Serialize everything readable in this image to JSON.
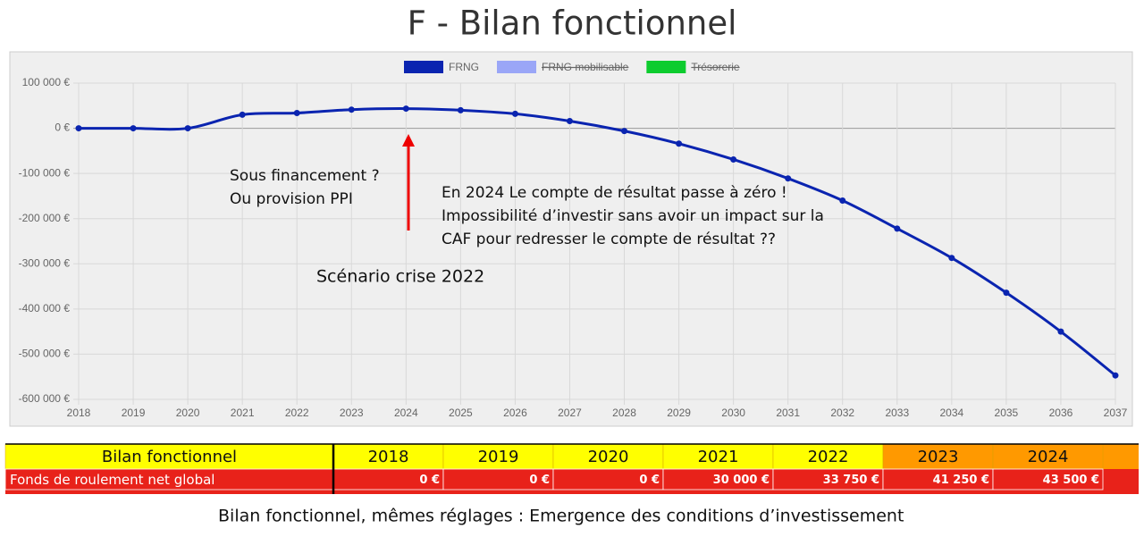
{
  "chart_data": {
    "type": "line",
    "title": "F - Bilan fonctionnel",
    "x": [
      2018,
      2019,
      2020,
      2021,
      2022,
      2023,
      2024,
      2025,
      2026,
      2027,
      2028,
      2029,
      2030,
      2031,
      2032,
      2033,
      2034,
      2035,
      2036,
      2037
    ],
    "xlim": [
      2018,
      2037
    ],
    "xticks": [
      2018,
      2019,
      2020,
      2021,
      2022,
      2023,
      2024,
      2025,
      2026,
      2027,
      2028,
      2029,
      2030,
      2031,
      2032,
      2033,
      2034,
      2035,
      2036,
      2037
    ],
    "series": [
      {
        "name": "FRNG",
        "color": "#0a24b0",
        "values": [
          0,
          0,
          0,
          30000,
          33750,
          41250,
          43500,
          40000,
          32000,
          16000,
          -6000,
          -34000,
          -69000,
          -111000,
          -160000,
          -222000,
          -287000,
          -364000,
          -450000,
          -547000
        ]
      },
      {
        "name": "FRNG mobilisable",
        "color": "#9aa6f7",
        "hidden": true
      },
      {
        "name": "Trésorerie",
        "color": "#0dcc2e",
        "hidden": true
      }
    ],
    "ylim": [
      -600000,
      100000
    ],
    "yticks": [
      {
        "value": 100000,
        "label": "100 000 €"
      },
      {
        "value": 0,
        "label": "0 €"
      },
      {
        "value": -100000,
        "label": "-100 000 €"
      },
      {
        "value": -200000,
        "label": "-200 000 €"
      },
      {
        "value": -300000,
        "label": "-300 000 €"
      },
      {
        "value": -400000,
        "label": "-400 000 €"
      },
      {
        "value": -500000,
        "label": "-500 000 €"
      },
      {
        "value": -600000,
        "label": "-600 000 €"
      }
    ],
    "grid": true,
    "legend": "top",
    "annotations": [
      "Sous financement  ?",
      "Ou provision PPI",
      "En 2024 Le compte de résultat passe à zéro !",
      "Impossibilité d’investir sans avoir un impact sur la",
      "CAF pour redresser  le compte de résultat ??",
      "Scénario crise 2022"
    ]
  },
  "table": {
    "header": [
      "Bilan fonctionnel",
      "2018",
      "2019",
      "2020",
      "2021",
      "2022",
      "2023",
      "2024"
    ],
    "rows": [
      [
        "Fonds de roulement net global",
        "0 €",
        "0 €",
        "0 €",
        "30 000 €",
        "33 750 €",
        "41 250 €",
        "43 500 €"
      ]
    ]
  },
  "caption": "Bilan fonctionnel, mêmes réglages :  Emergence des conditions d’investissement"
}
